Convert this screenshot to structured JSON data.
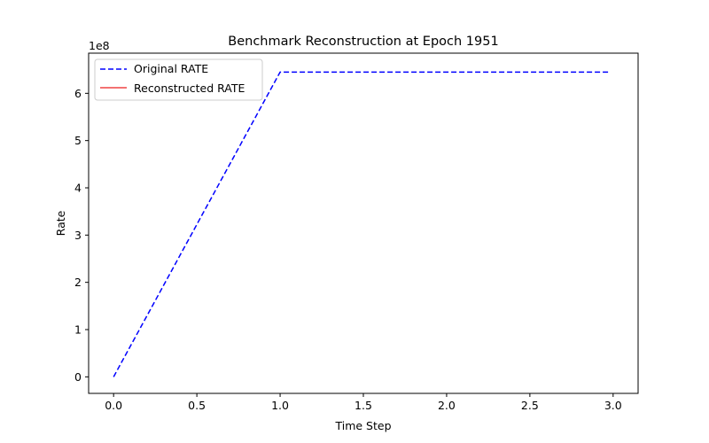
{
  "chart_data": {
    "type": "line",
    "title": "Benchmark Reconstruction at Epoch 1951",
    "xlabel": "Time Step",
    "ylabel": "Rate",
    "y_scale_label": "1e8",
    "xlim": [
      -0.15,
      3.15
    ],
    "ylim": [
      -0.35,
      6.85
    ],
    "x_ticks": [
      0.0,
      0.5,
      1.0,
      1.5,
      2.0,
      2.5,
      3.0
    ],
    "x_tick_labels": [
      "0.0",
      "0.5",
      "1.0",
      "1.5",
      "2.0",
      "2.5",
      "3.0"
    ],
    "y_ticks": [
      0,
      1,
      2,
      3,
      4,
      5,
      6
    ],
    "y_tick_labels": [
      "0",
      "1",
      "2",
      "3",
      "4",
      "5",
      "6"
    ],
    "grid": false,
    "legend_position": "top-left",
    "series": [
      {
        "name": "Original RATE",
        "color": "#0000ff",
        "style": "dashed",
        "x": [
          0.0,
          1.0,
          2.97
        ],
        "y": [
          0.0,
          6.45,
          6.45
        ]
      },
      {
        "name": "Reconstructed RATE",
        "color": "#ef4444",
        "style": "solid",
        "x": [],
        "y": []
      }
    ]
  }
}
